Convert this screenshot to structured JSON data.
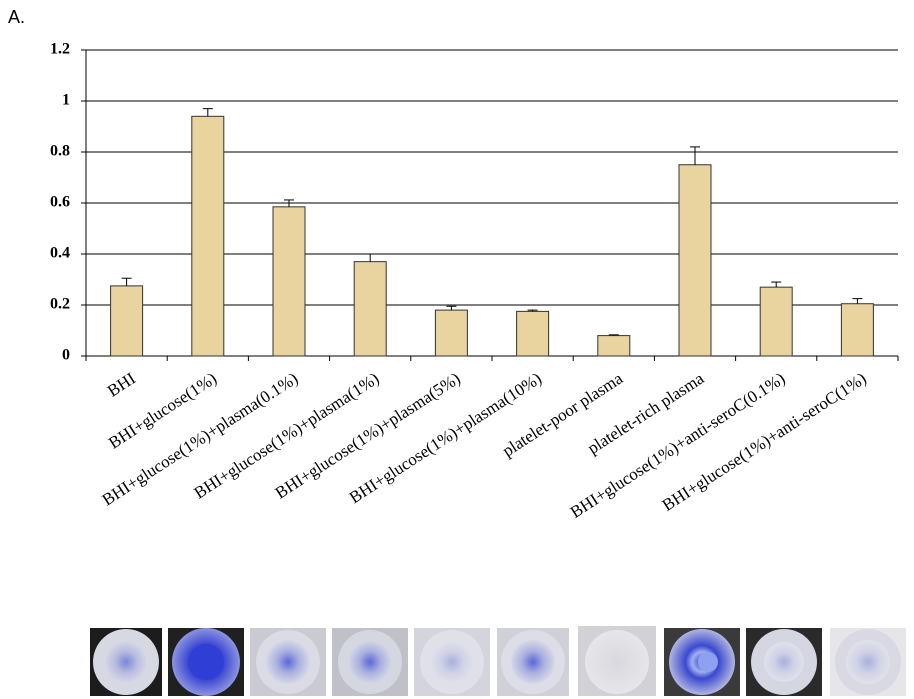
{
  "chart_data": {
    "type": "bar",
    "title": "A.",
    "categories": [
      "BHI",
      "BHI+glucose(1%)",
      "BHI+glucose(1%)+plasma(0.1%)",
      "BHI+glucose(1%)+plasma(1%)",
      "BHI+glucose(1%)+plasma(5%)",
      "BHI+glucose(1%)+plasma(10%)",
      "platelet-poor plasma",
      "platelet-rich plasma",
      "BHI+glucose(1%)+anti-seroC(0.1%)",
      "BHI+glucose(1%)+anti-seroC(1%)"
    ],
    "values": [
      0.275,
      0.94,
      0.585,
      0.37,
      0.18,
      0.175,
      0.08,
      0.75,
      0.27,
      0.205
    ],
    "errors": [
      0.03,
      0.03,
      0.027,
      0.03,
      0.015,
      0.005,
      0.003,
      0.07,
      0.02,
      0.02
    ],
    "color": "#e9d39f",
    "ylim": [
      0,
      1.2
    ],
    "yticks": [
      0,
      0.2,
      0.4,
      0.6,
      0.8,
      1,
      1.2
    ],
    "grid": true
  }
}
